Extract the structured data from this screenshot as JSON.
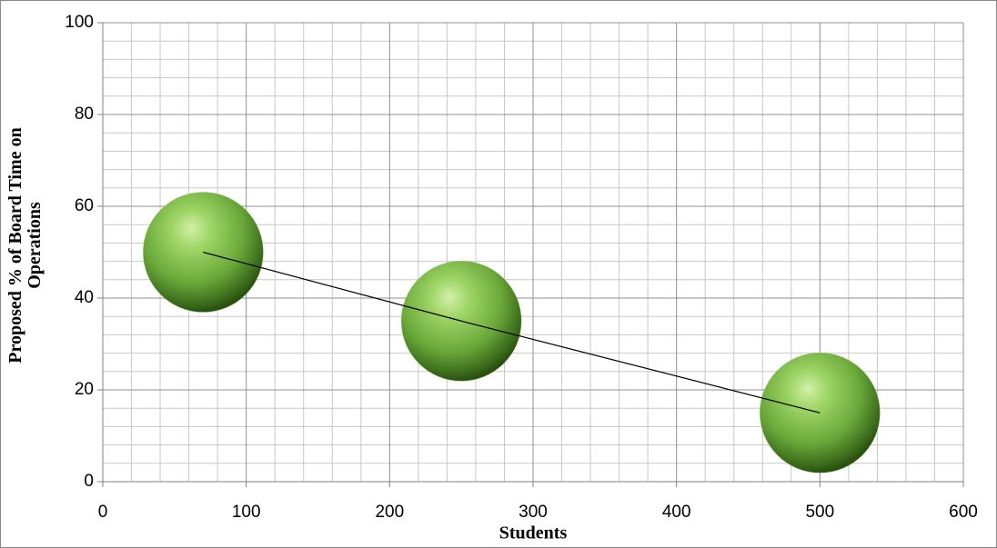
{
  "chart_data": {
    "type": "bubble",
    "x_label": "Students",
    "y_label": "Proposed % of Board Time on Operations",
    "series": [
      {
        "color": "#7cb547",
        "x": [
          70,
          250,
          500
        ],
        "values": [
          50,
          35,
          15
        ],
        "sizes": [
          1,
          1,
          1
        ]
      }
    ],
    "xlim": [
      0,
      600
    ],
    "xticks": [
      0,
      100,
      200,
      300,
      400,
      500,
      600
    ],
    "ylim": [
      0,
      100
    ],
    "yticks": [
      0,
      20,
      40,
      60,
      80,
      100
    ],
    "xminorticks": [
      20,
      40,
      60,
      80,
      120,
      140,
      160,
      180,
      220,
      240,
      260,
      280,
      320,
      340,
      360,
      380,
      420,
      440,
      460,
      480,
      520,
      540,
      560,
      580
    ],
    "yminorticks": [
      4,
      8,
      12,
      16,
      24,
      28,
      32,
      36,
      44,
      48,
      52,
      56,
      64,
      68,
      72,
      76,
      84,
      88,
      92,
      96
    ],
    "grid": true,
    "line_color": "#000000"
  }
}
